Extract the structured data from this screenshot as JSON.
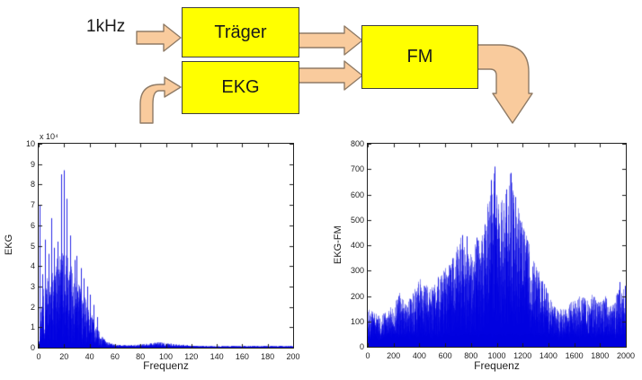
{
  "diagram": {
    "input_label": "1kHz",
    "blocks": [
      {
        "label": "Träger"
      },
      {
        "label": "EKG"
      },
      {
        "label": "FM"
      }
    ],
    "colors": {
      "box_fill": "#ffff00",
      "box_border": "#3f3f3f",
      "arrow_fill": "#f9cb9d",
      "arrow_border": "#8f7b66"
    }
  },
  "chart_data": [
    {
      "type": "line",
      "title": "",
      "xlabel": "Frequenz",
      "ylabel": "EKG",
      "scale_label": "x 10⁴",
      "xlim": [
        0,
        200
      ],
      "ylim": [
        0,
        10
      ],
      "x_ticks": [
        0,
        20,
        40,
        60,
        80,
        100,
        120,
        140,
        160,
        180,
        200
      ],
      "y_ticks": [
        0,
        1,
        2,
        3,
        4,
        5,
        6,
        7,
        8,
        9,
        10
      ],
      "y_unit_multiplier": 10000,
      "line_color": "#0000e0",
      "grid": false,
      "legend": null,
      "seed": 1337,
      "samples": 2600,
      "power": 1.25,
      "base_frac": 0.05,
      "bottom_band": 0.08,
      "envelope": [
        [
          0,
          0.2
        ],
        [
          2,
          2.8
        ],
        [
          5,
          3.2
        ],
        [
          8,
          3.9
        ],
        [
          12,
          4.3
        ],
        [
          18,
          4.7
        ],
        [
          22,
          4.5
        ],
        [
          25,
          4.1
        ],
        [
          28,
          3.7
        ],
        [
          32,
          3.1
        ],
        [
          36,
          2.5
        ],
        [
          40,
          1.9
        ],
        [
          44,
          1.2
        ],
        [
          48,
          0.7
        ],
        [
          52,
          0.4
        ],
        [
          56,
          0.22
        ],
        [
          60,
          0.15
        ],
        [
          70,
          0.12
        ],
        [
          80,
          0.16
        ],
        [
          88,
          0.22
        ],
        [
          95,
          0.28
        ],
        [
          100,
          0.22
        ],
        [
          108,
          0.18
        ],
        [
          115,
          0.14
        ],
        [
          120,
          0.1
        ],
        [
          130,
          0.05
        ],
        [
          140,
          0.04
        ],
        [
          150,
          0.03
        ],
        [
          170,
          0.03
        ],
        [
          185,
          0.04
        ],
        [
          200,
          0.05
        ]
      ],
      "spikes": [
        [
          1,
          7.0
        ],
        [
          3,
          3.6
        ],
        [
          5,
          5.3
        ],
        [
          8,
          4.6
        ],
        [
          10,
          6.35
        ],
        [
          12,
          4.9
        ],
        [
          15,
          5.2
        ],
        [
          18,
          8.5
        ],
        [
          20,
          8.7
        ],
        [
          22,
          7.3
        ],
        [
          25,
          5.5
        ],
        [
          28,
          4.3
        ],
        [
          30,
          4.5
        ],
        [
          33,
          3.9
        ],
        [
          35,
          3.4
        ],
        [
          38,
          3.0
        ],
        [
          40,
          2.6
        ],
        [
          43,
          2.1
        ],
        [
          46,
          1.5
        ]
      ]
    },
    {
      "type": "line",
      "title": "",
      "xlabel": "Frequenz",
      "ylabel": "EKG-FM",
      "xlim": [
        0,
        2000
      ],
      "ylim": [
        0,
        800
      ],
      "x_ticks": [
        0,
        200,
        400,
        600,
        800,
        1000,
        1200,
        1400,
        1600,
        1800,
        2000
      ],
      "y_ticks": [
        0,
        100,
        200,
        300,
        400,
        500,
        600,
        700,
        800
      ],
      "y_unit_multiplier": 1,
      "line_color": "#0000e0",
      "grid": false,
      "legend": null,
      "seed": 4242,
      "samples": 3000,
      "power": 1.35,
      "base_frac": 0.12,
      "bottom_band": 55,
      "envelope": [
        [
          0,
          150
        ],
        [
          60,
          130
        ],
        [
          100,
          125
        ],
        [
          150,
          150
        ],
        [
          200,
          165
        ],
        [
          240,
          225
        ],
        [
          280,
          170
        ],
        [
          320,
          190
        ],
        [
          360,
          230
        ],
        [
          400,
          270
        ],
        [
          440,
          250
        ],
        [
          480,
          230
        ],
        [
          520,
          260
        ],
        [
          560,
          290
        ],
        [
          600,
          310
        ],
        [
          640,
          330
        ],
        [
          680,
          380
        ],
        [
          720,
          440
        ],
        [
          760,
          360
        ],
        [
          800,
          380
        ],
        [
          840,
          420
        ],
        [
          880,
          450
        ],
        [
          920,
          520
        ],
        [
          950,
          660
        ],
        [
          980,
          710
        ],
        [
          1010,
          640
        ],
        [
          1040,
          600
        ],
        [
          1070,
          620
        ],
        [
          1100,
          690
        ],
        [
          1130,
          600
        ],
        [
          1160,
          560
        ],
        [
          1200,
          480
        ],
        [
          1240,
          430
        ],
        [
          1280,
          350
        ],
        [
          1320,
          300
        ],
        [
          1360,
          260
        ],
        [
          1400,
          210
        ],
        [
          1440,
          170
        ],
        [
          1480,
          150
        ],
        [
          1520,
          150
        ],
        [
          1560,
          170
        ],
        [
          1600,
          185
        ],
        [
          1650,
          205
        ],
        [
          1700,
          180
        ],
        [
          1750,
          215
        ],
        [
          1800,
          175
        ],
        [
          1850,
          205
        ],
        [
          1900,
          165
        ],
        [
          1950,
          245
        ],
        [
          2000,
          225
        ]
      ],
      "spikes": [
        [
          985,
          710
        ],
        [
          1105,
          685
        ],
        [
          955,
          655
        ],
        [
          1075,
          620
        ],
        [
          1145,
          590
        ],
        [
          730,
          440
        ],
        [
          770,
          435
        ],
        [
          845,
          430
        ],
        [
          905,
          480
        ],
        [
          1190,
          470
        ],
        [
          1230,
          420
        ],
        [
          1950,
          255
        ],
        [
          1990,
          240
        ]
      ]
    }
  ]
}
